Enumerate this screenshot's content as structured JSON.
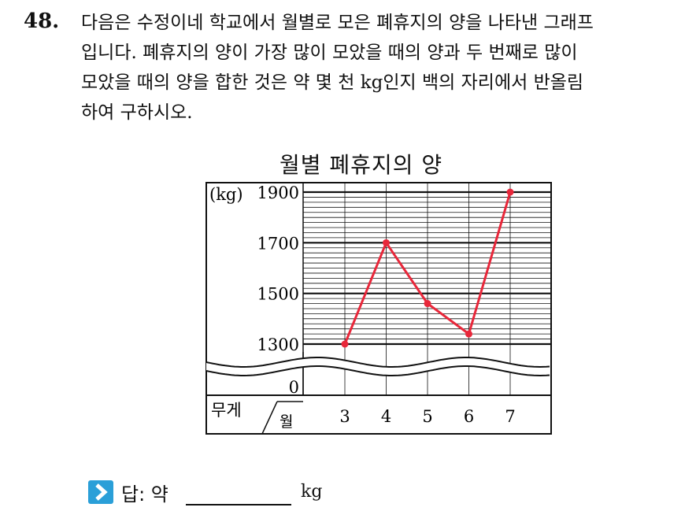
{
  "question": {
    "number": "48.",
    "lines": [
      "다음은 수정이네 학교에서 월별로 모은 폐휴지의 양을 나타낸 그래프",
      "입니다. 폐휴지의 양이 가장 많이 모았을 때의 양과 두 번째로 많이",
      "모았을 때의 양을 합한 것은 약 몇 천 kg인지 백의 자리에서 반올림",
      "하여 구하시오."
    ]
  },
  "chart_data": {
    "type": "line",
    "title": "월별 폐휴지의 양",
    "unit_label": "(kg)",
    "xlabel": "월",
    "ylabel": "무게",
    "categories": [
      "3",
      "4",
      "5",
      "6",
      "7"
    ],
    "values": [
      1300,
      1700,
      1460,
      1340,
      1900
    ],
    "yticks": [
      "1900",
      "1700",
      "1500",
      "1300"
    ],
    "zero_label": "0",
    "ylim": [
      1300,
      1900
    ],
    "broken_axis": true,
    "line_color": "#e8273a",
    "grid": true
  },
  "answer": {
    "label": "답: 약",
    "unit": "kg",
    "icon": "chevron-right-icon",
    "icon_color": "#2a9fd8"
  }
}
